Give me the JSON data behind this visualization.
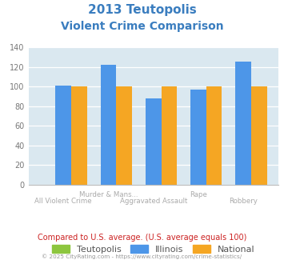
{
  "title_line1": "2013 Teutopolis",
  "title_line2": "Violent Crime Comparison",
  "title_color": "#3a7dbf",
  "illinois_vals": [
    101,
    122,
    88,
    97,
    126
  ],
  "national_vals": [
    100,
    100,
    100,
    100,
    100
  ],
  "teutopolis_vals": [
    0,
    0,
    0,
    0,
    0
  ],
  "illinois_color": "#4d96e8",
  "national_color": "#f5a623",
  "teutopolis_color": "#8dc63f",
  "ylim": [
    0,
    140
  ],
  "yticks": [
    0,
    20,
    40,
    60,
    80,
    100,
    120,
    140
  ],
  "plot_bg": "#dae8f0",
  "grid_color": "#c5d8e0",
  "xlabel_top": [
    "",
    "Murder & Mans...",
    "",
    "Rape",
    ""
  ],
  "xlabel_bot": [
    "All Violent Crime",
    "Aggravated Assault",
    "",
    "",
    "Robbery"
  ],
  "x_positions": [
    0,
    1,
    2,
    3,
    4
  ],
  "footer_text": "Compared to U.S. average. (U.S. average equals 100)",
  "footer_color": "#cc2222",
  "copyright_text": "© 2025 CityRating.com - https://www.cityrating.com/crime-statistics/",
  "copyright_color": "#999999",
  "legend_labels": [
    "Teutopolis",
    "Illinois",
    "National"
  ],
  "bar_width": 0.35
}
